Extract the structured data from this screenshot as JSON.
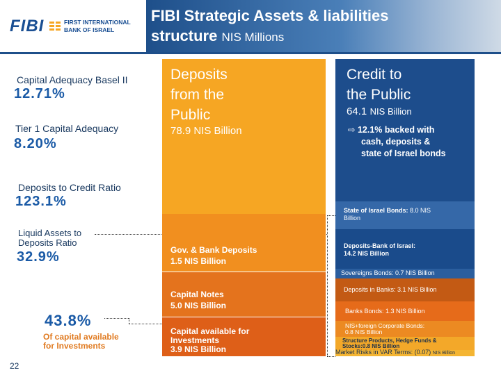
{
  "logo": {
    "brand": "FIBI",
    "line1": "FIRST INTERNATIONAL",
    "line2": "BANK OF ISRAEL"
  },
  "header": {
    "title": "FIBI Strategic Assets & liabilities",
    "title_line2": "structure",
    "subtitle": "NIS Millions"
  },
  "metrics": {
    "cap_basel_label": "Capital Adequacy Basel II",
    "cap_basel_value": "12.71%",
    "tier1_label": "Tier 1 Capital Adequacy",
    "tier1_value": "8.20%",
    "dep_credit_label": "Deposits to Credit Ratio",
    "dep_credit_value": "123.1%",
    "liquid_label_1": "Liquid Assets to",
    "liquid_label_2": "Deposits Ratio",
    "liquid_value": "32.9%",
    "invest_value": "43.8%",
    "invest_label_1": "Of capital available",
    "invest_label_2": "for Investments"
  },
  "liabilities": {
    "deposits_title_1": "Deposits",
    "deposits_title_2": "from the",
    "deposits_title_3": "Public",
    "deposits_value": "78.9 NIS Billion",
    "gov_1": "Gov. & Bank Deposits",
    "gov_2": "1.5 NIS Billion",
    "capnotes_1": "Capital Notes",
    "capnotes_2": "5.0 NIS Billion",
    "capinv_1": "Capital available for",
    "capinv_2": "Investments",
    "capinv_3": "3.9 NIS Billion"
  },
  "assets": {
    "credit_title_1": "Credit to",
    "credit_title_2": "the Public",
    "credit_value": "64.1",
    "credit_unit": "NIS Billion",
    "credit_note_1": "12.1% backed with",
    "credit_note_2": "cash, deposits &",
    "credit_note_3": "state of Israel bonds",
    "state_1": "State of Israel Bonds:",
    "state_val": "8.0 NIS",
    "state_2": "Billion",
    "boi_1": "Deposits-Bank of Israel:",
    "boi_2": "14.2 NIS Billion",
    "sov": "Sovereigns Bonds: 0.7 NIS Billion",
    "banks": "Deposits in Banks: 3.1 NIS Billion",
    "bbonds": "Banks Bonds: 1.3 NIS Billion",
    "corp_1": "NIS+foreign Corporate Bonds:",
    "corp_2": "0.8 NIS Billion",
    "struct_1": "Structure Products, Hedge Funds &",
    "struct_2": "Stocks:0.8 NIS Billion",
    "var": "Market Risks in VAR Terms: (0.07)",
    "var_unit": "NIS Billion"
  },
  "page": {
    "number": "22"
  },
  "colors": {
    "brand_blue": "#1e4f8a",
    "orange": "#f6a623"
  }
}
